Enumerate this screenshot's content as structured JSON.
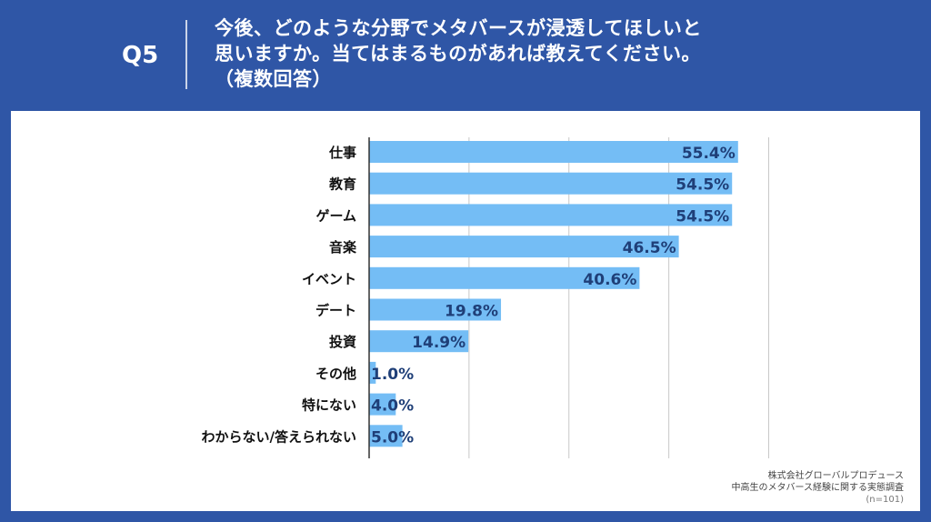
{
  "header": {
    "qnum": "Q5",
    "question_lines": [
      "今後、どのような分野でメタバースが浸透してほしいと",
      "思いますか。当てはまるものがあれば教えてください。",
      "（複数回答）"
    ]
  },
  "chart_data": {
    "type": "bar",
    "orientation": "horizontal",
    "categories": [
      "仕事",
      "教育",
      "ゲーム",
      "音楽",
      "イベント",
      "デート",
      "投資",
      "その他",
      "特にない",
      "わからない/答えられない"
    ],
    "values": [
      55.4,
      54.5,
      54.5,
      46.5,
      40.6,
      19.8,
      14.9,
      1.0,
      4.0,
      5.0
    ],
    "value_labels": [
      "55.4%",
      "54.5%",
      "54.5%",
      "46.5%",
      "40.6%",
      "19.8%",
      "14.9%",
      "1.0%",
      "4.0%",
      "5.0%"
    ],
    "unit": "%",
    "xlim": [
      0,
      60
    ],
    "gridlines": [
      0,
      15,
      30,
      45,
      60
    ],
    "grid": true,
    "legend": "none",
    "bar_color": "#74bdf5",
    "label_color": "#1f3f78"
  },
  "source": {
    "company": "株式会社グローバルプロデュース",
    "survey": "中高生のメタバース経験に関する実態調査",
    "n": "(n=101)"
  },
  "colors": {
    "background": "#2f56a6",
    "panel": "#ffffff",
    "grid": "#c8c8c8"
  }
}
